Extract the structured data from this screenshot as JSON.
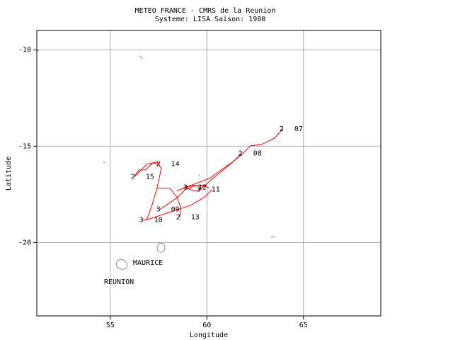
{
  "chart_data": {
    "type": "track",
    "title": "METEO FRANCE - CMRS de la Reunion",
    "subtitle": "Systeme: LISA  Saison: 1980",
    "x_label": "Longitude",
    "y_label": "Latitude",
    "xlim": [
      51.2,
      69.0
    ],
    "ylim": [
      -23.8,
      -9.0
    ],
    "xticks": [
      55,
      60,
      65
    ],
    "yticks": [
      -10,
      -15,
      -20
    ],
    "grid": true,
    "color": "#ff0000",
    "places": [
      "MAURICE",
      "REUNION"
    ],
    "series": [
      {
        "name": "07",
        "stage": 2,
        "x": [
          63.94,
          63.5,
          62.84,
          62.25,
          61.89,
          61.08,
          60.27,
          59.91,
          59.62
        ],
        "values": [
          -14.1,
          -14.58,
          -14.91,
          -14.98,
          -15.35,
          -16.04,
          -16.7,
          -17.03,
          -17.25
        ]
      },
      {
        "name": "08",
        "stage": 2,
        "x": [
          61.81,
          61.37,
          60.64,
          60.13,
          59.18,
          58.74
        ],
        "values": [
          -15.38,
          -15.79,
          -16.3,
          -16.67,
          -17.03,
          -17.18
        ]
      },
      {
        "name": "14",
        "stage": 2,
        "x": [
          57.56,
          57.2,
          56.83,
          56.47,
          56.25
        ],
        "values": [
          -15.93,
          -15.86,
          -16.23,
          -16.23,
          -16.59
        ]
      },
      {
        "name": "15",
        "stage": 2,
        "x": [
          56.25,
          56.9,
          57.42,
          57.64,
          57.42,
          57.16,
          56.9
        ],
        "values": [
          -16.59,
          -15.93,
          -15.82,
          -16.15,
          -17.18,
          -18.06,
          -18.79
        ]
      },
      {
        "name": "10",
        "stage": 3,
        "x": [
          56.68,
          56.98,
          58.08,
          59.18,
          59.91,
          60.27
        ],
        "values": [
          -18.83,
          -18.79,
          -18.42,
          -18.06,
          -17.62,
          -17.25
        ]
      },
      {
        "name": "09",
        "stage": 3,
        "x": [
          57.56,
          58.0,
          58.52,
          58.88,
          59.47,
          59.98
        ],
        "values": [
          -18.28,
          -17.99,
          -17.62,
          -17.25,
          -17.03,
          -17.03
        ]
      },
      {
        "name": "13",
        "stage": 2,
        "x": [
          58.59,
          58.66,
          58.44,
          58.08,
          57.42
        ],
        "values": [
          -18.68,
          -18.21,
          -17.62,
          -17.18,
          -17.18
        ]
      },
      {
        "name": "11",
        "stage": 3,
        "x": [
          59.65,
          59.36,
          58.88,
          58.44
        ],
        "values": [
          -17.25,
          -17.33,
          -17.14,
          -17.33
        ]
      },
      {
        "name": "12",
        "stage": 3,
        "x": [
          58.96,
          59.25,
          59.62,
          60.09
        ],
        "values": [
          -17.14,
          -17.03,
          -17.03,
          -17.14
        ]
      }
    ]
  }
}
